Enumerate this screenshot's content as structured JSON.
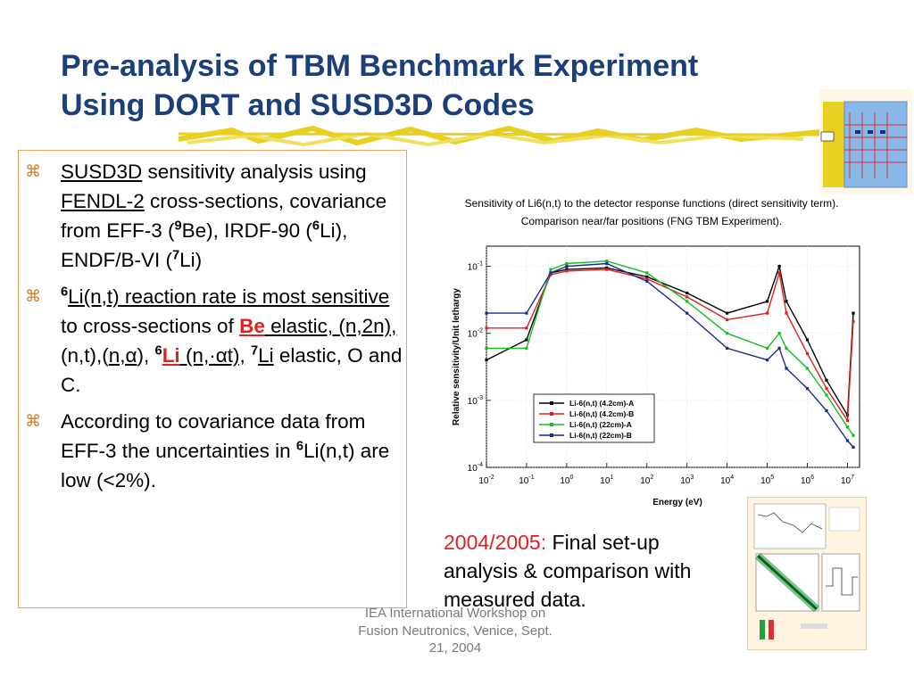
{
  "title": {
    "line1": "Pre-analysis of TBM Benchmark Experiment",
    "line2": "Using DORT and SUSD3D Codes"
  },
  "bullets": {
    "b1": {
      "susd3d": "SUSD3D",
      "t1": " sensitivity analysis using ",
      "fendl": "FENDL-2",
      "t2": " cross-sections, covariance from EFF-3 (",
      "sup9": "9",
      "t3": "Be), IRDF-90 (",
      "sup6": "6",
      "t4": "Li), ENDF/B-VI (",
      "sup7": "7",
      "t5": "Li)"
    },
    "b2": {
      "sup6a": "6",
      "rr": "Li(n,t) reaction rate is most sensitive ",
      "t1": "to cross-sections of ",
      "be": "Be",
      "el": " elastic, (n,2n),",
      "t2": " (n,t),(",
      "na": "n,α",
      "t3": "),",
      "sup6b": "6",
      "li": "Li",
      "nat": " (n,·αt),",
      "t4": " ",
      "sup7": "7",
      "li2": "Li",
      "t5": " elastic, O and C."
    },
    "b3": {
      "t1": "According to covariance data from EFF-3 the uncertainties in ",
      "sup6": "6",
      "t2": "Li(n,t) are low (<2%)."
    }
  },
  "caption": {
    "line1": "Sensitivity of Li6(n,t) to the detector response functions (direct sensitivity term).",
    "line2": "Comparison near/far positions (FNG TBM Experiment)."
  },
  "chart_data": {
    "type": "line",
    "xlabel": "Energy (eV)",
    "ylabel": "Relative sensitivity/Unit lethargy",
    "xscale": "log",
    "yscale": "log",
    "xlim": [
      0.01,
      20000000
    ],
    "ylim": [
      0.0001,
      0.2
    ],
    "x_ticks": [
      "10^-2",
      "10^-1",
      "10^0",
      "10^1",
      "10^2",
      "10^3",
      "10^4",
      "10^5",
      "10^6",
      "10^7"
    ],
    "y_ticks": [
      "10^-1",
      "10^-2",
      "10^-3",
      "10^-4"
    ],
    "legend": "lower-center",
    "x": [
      0.01,
      0.1,
      0.4,
      1,
      10,
      100,
      1000,
      10000,
      100000,
      200000,
      300000,
      1000000,
      3000000,
      10000000,
      14000000
    ],
    "series": [
      {
        "name": "Li-6(n,t) (4.2cm)-A",
        "color": "#000000",
        "values": [
          0.004,
          0.008,
          0.08,
          0.09,
          0.095,
          0.07,
          0.04,
          0.02,
          0.03,
          0.1,
          0.03,
          0.008,
          0.002,
          0.0006,
          0.02
        ]
      },
      {
        "name": "Li-6(n,t) (4.2cm)-B",
        "color": "#e02020",
        "values": [
          0.012,
          0.012,
          0.075,
          0.085,
          0.09,
          0.065,
          0.035,
          0.016,
          0.02,
          0.08,
          0.02,
          0.005,
          0.0015,
          0.0005,
          0.015
        ]
      },
      {
        "name": "Li-6(n,t) (22cm)-A",
        "color": "#10c020",
        "values": [
          0.006,
          0.006,
          0.09,
          0.11,
          0.12,
          0.08,
          0.03,
          0.01,
          0.006,
          0.01,
          0.006,
          0.003,
          0.0012,
          0.0004,
          0.0003
        ]
      },
      {
        "name": "Li-6(n,t) (22cm)-B",
        "color": "#1a2a90",
        "values": [
          0.02,
          0.02,
          0.08,
          0.1,
          0.11,
          0.06,
          0.02,
          0.006,
          0.004,
          0.006,
          0.003,
          0.0015,
          0.0007,
          0.00025,
          0.0002
        ]
      }
    ]
  },
  "note": {
    "year": "2004/2005:",
    "text": " Final set-up analysis & comparison with measured data."
  },
  "footer": {
    "line1": "IEA International Workshop on",
    "line2": "Fusion Neutronics, Venice, Sept.",
    "line3": "21, 2004"
  },
  "colors": {
    "title": "#1a3f7a",
    "accent": "#e02020",
    "box_border": "#f0a060",
    "underline": "#e8d020"
  }
}
